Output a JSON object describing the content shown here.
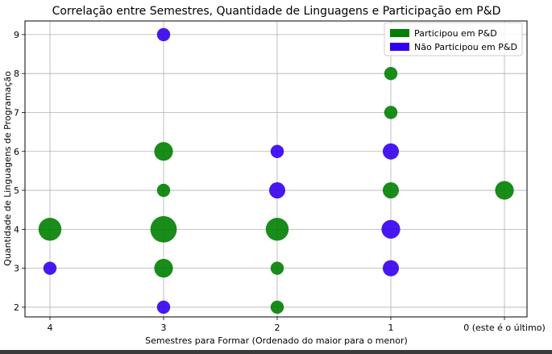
{
  "chart_data": {
    "type": "scatter",
    "title": "Correlação entre Semestres, Quantidade de Linguagens e Participação em P&D",
    "xlabel": "Semestres para Formar (Ordenado do maior para o menor)",
    "ylabel": "Quantidade de Linguagens de Programação",
    "x_categories": [
      "4",
      "3",
      "2",
      "1",
      "0 (este é o último)"
    ],
    "y_ticks": [
      2,
      3,
      4,
      5,
      6,
      7,
      8,
      9
    ],
    "ylim": [
      1.75,
      9.35
    ],
    "grid": true,
    "legend_position": "top-right",
    "size_note": "marker area proportional to number of respondents",
    "series": [
      {
        "name": "Participou em P&D",
        "color": "#008000",
        "points": [
          {
            "x": "4",
            "y": 4,
            "count": 3
          },
          {
            "x": "3",
            "y": 6,
            "count": 2
          },
          {
            "x": "3",
            "y": 5,
            "count": 1
          },
          {
            "x": "3",
            "y": 4,
            "count": 4
          },
          {
            "x": "3",
            "y": 3,
            "count": 2
          },
          {
            "x": "2",
            "y": 4,
            "count": 3
          },
          {
            "x": "2",
            "y": 3,
            "count": 1
          },
          {
            "x": "2",
            "y": 2,
            "count": 1
          },
          {
            "x": "1",
            "y": 8,
            "count": 1
          },
          {
            "x": "1",
            "y": 7,
            "count": 1
          },
          {
            "x": "1",
            "y": 5,
            "count": 1.5
          },
          {
            "x": "0 (este é o último)",
            "y": 5,
            "count": 2
          }
        ]
      },
      {
        "name": "Não Participou em P&D",
        "color": "#3300ee",
        "points": [
          {
            "x": "4",
            "y": 3,
            "count": 1
          },
          {
            "x": "3",
            "y": 9,
            "count": 1
          },
          {
            "x": "3",
            "y": 2,
            "count": 1
          },
          {
            "x": "2",
            "y": 6,
            "count": 1
          },
          {
            "x": "2",
            "y": 5,
            "count": 1.5
          },
          {
            "x": "1",
            "y": 6,
            "count": 1.5
          },
          {
            "x": "1",
            "y": 4,
            "count": 2
          },
          {
            "x": "1",
            "y": 3,
            "count": 1.5
          }
        ]
      }
    ]
  }
}
